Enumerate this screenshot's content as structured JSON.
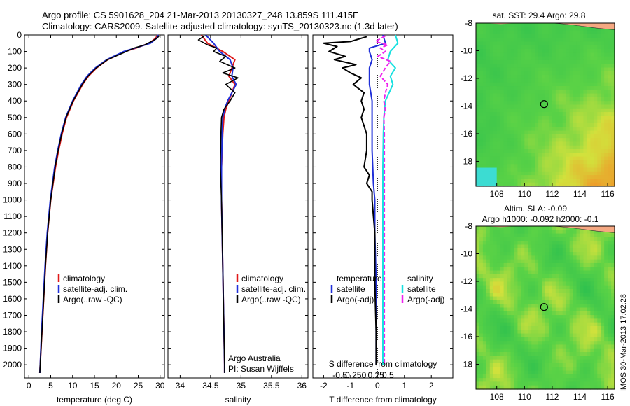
{
  "header": {
    "line1": "Argo profile: CS 5901628_204 21-Mar-2013 20130327_248 13.859S 111.415E",
    "line2": "Climatology: CARS2009. Satellite-adjusted climatology: synTS_20130323.nc (1.3d later)"
  },
  "colors": {
    "climatology": "#e01818",
    "satellite": "#1f2fd8",
    "argo": "#000000",
    "sal_satellite": "#18e0e0",
    "sal_argo": "#ee22ee",
    "land": "#f5a882"
  },
  "chart_data": [
    {
      "id": "temperature",
      "type": "line",
      "xlabel": "temperature (deg C)",
      "ylabel": "",
      "xlim": [
        -1,
        31
      ],
      "ylim": [
        2080,
        0
      ],
      "xticks": [
        "0",
        "5",
        "10",
        "15",
        "20",
        "25",
        "30"
      ],
      "xtick_values": [
        0,
        5,
        10,
        15,
        20,
        25,
        30
      ],
      "yticks": [
        "0",
        "100",
        "200",
        "300",
        "400",
        "500",
        "600",
        "700",
        "800",
        "900",
        "1000",
        "1100",
        "1200",
        "1300",
        "1400",
        "1500",
        "1600",
        "1700",
        "1800",
        "1900",
        "2000"
      ],
      "ytick_values": [
        0,
        100,
        200,
        300,
        400,
        500,
        600,
        700,
        800,
        900,
        1000,
        1100,
        1200,
        1300,
        1400,
        1500,
        1600,
        1700,
        1800,
        1900,
        2000
      ],
      "legend": [
        "climatology",
        "satellite-adj. clim.",
        "Argo(..raw -QC)"
      ],
      "series": [
        {
          "name": "climatology",
          "depth": [
            0,
            20,
            50,
            80,
            100,
            150,
            200,
            250,
            300,
            400,
            500,
            600,
            700,
            800,
            1000,
            1200,
            1400,
            1600,
            1800,
            2000,
            2050
          ],
          "values": [
            29.4,
            29.0,
            27.5,
            24.5,
            22.0,
            18.0,
            15.5,
            13.6,
            12.3,
            10.2,
            8.6,
            7.6,
            6.8,
            6.1,
            5.0,
            4.3,
            3.8,
            3.4,
            3.0,
            2.6,
            2.5
          ]
        },
        {
          "name": "satellite-adj. clim.",
          "depth": [
            0,
            20,
            50,
            80,
            100,
            150,
            200,
            250,
            300,
            400,
            500,
            600,
            700,
            800,
            1000,
            1200,
            1400,
            1600,
            1800,
            2000,
            2050
          ],
          "values": [
            29.6,
            29.2,
            27.8,
            24.2,
            21.7,
            17.8,
            15.2,
            13.3,
            12.0,
            10.0,
            8.4,
            7.4,
            6.6,
            5.9,
            4.9,
            4.2,
            3.7,
            3.3,
            2.9,
            2.6,
            2.5
          ]
        },
        {
          "name": "Argo(..raw -QC)",
          "depth": [
            5,
            20,
            40,
            60,
            80,
            100,
            150,
            200,
            250,
            300,
            400,
            500,
            600,
            700,
            800,
            1000,
            1200,
            1400,
            1600,
            1800,
            2000,
            2050
          ],
          "values": [
            29.8,
            29.3,
            28.0,
            26.5,
            24.0,
            22.3,
            18.0,
            15.4,
            13.5,
            12.2,
            10.1,
            8.5,
            7.5,
            6.7,
            6.0,
            5.0,
            4.3,
            3.8,
            3.4,
            3.0,
            2.6,
            2.5
          ]
        }
      ]
    },
    {
      "id": "salinity",
      "type": "line",
      "xlabel": "salinity",
      "xlim": [
        33.8,
        36.1
      ],
      "ylim": [
        2080,
        0
      ],
      "xticks": [
        "34",
        "34.5",
        "35",
        "35.5",
        "36"
      ],
      "xtick_values": [
        34,
        34.5,
        35,
        35.5,
        36
      ],
      "legend": [
        "climatology",
        "satellite-adj. clim.",
        "Argo(..raw -QC)"
      ],
      "annotations": [
        "Argo Australia",
        "PI: Susan Wijffels"
      ],
      "series": [
        {
          "name": "climatology",
          "depth": [
            0,
            50,
            100,
            150,
            200,
            250,
            300,
            350,
            400,
            450,
            500,
            600,
            800,
            1000,
            1200,
            1400,
            1600,
            1800,
            2000,
            2050
          ],
          "values": [
            34.35,
            34.45,
            34.7,
            34.9,
            34.85,
            34.8,
            34.9,
            34.85,
            34.8,
            34.75,
            34.72,
            34.7,
            34.68,
            34.68,
            34.69,
            34.7,
            34.71,
            34.72,
            34.73,
            34.73
          ]
        },
        {
          "name": "satellite-adj. clim.",
          "depth": [
            0,
            50,
            100,
            150,
            200,
            250,
            300,
            350,
            400,
            450,
            500,
            600,
            800,
            1000,
            1200,
            1400,
            1600,
            1800,
            2000,
            2050
          ],
          "values": [
            34.42,
            34.55,
            34.65,
            34.82,
            34.87,
            34.85,
            34.92,
            34.85,
            34.78,
            34.73,
            34.7,
            34.69,
            34.68,
            34.68,
            34.69,
            34.7,
            34.71,
            34.72,
            34.73,
            34.73
          ]
        },
        {
          "name": "Argo(..raw -QC)",
          "depth": [
            5,
            30,
            60,
            80,
            100,
            130,
            160,
            200,
            230,
            260,
            300,
            350,
            400,
            450,
            500,
            600,
            800,
            1000,
            1200,
            1400,
            1600,
            1800,
            2000,
            2050
          ],
          "values": [
            34.4,
            34.3,
            34.45,
            34.6,
            34.55,
            34.75,
            34.65,
            34.9,
            34.7,
            34.95,
            34.75,
            34.9,
            34.82,
            34.72,
            34.68,
            34.67,
            34.66,
            34.68,
            34.69,
            34.7,
            34.71,
            34.72,
            34.73,
            34.73
          ]
        }
      ]
    },
    {
      "id": "differences",
      "type": "line",
      "xlabel": "T difference from climatology",
      "top_label": "S difference from climatology",
      "xlim": [
        -2.4,
        2.8
      ],
      "ylim": [
        2080,
        0
      ],
      "xticks": [
        "-2",
        "-1",
        "0",
        "1",
        "2"
      ],
      "xtick_values": [
        -2,
        -1,
        0,
        1,
        2
      ],
      "sticks": [
        "-0.5",
        "-0.25",
        "0",
        "0.25",
        "0.5"
      ],
      "stick_values": [
        -0.5,
        -0.25,
        0,
        0.25,
        0.5
      ],
      "legend_temperature": {
        "title": "temperature",
        "items": [
          "satellite",
          "Argo(-adj)"
        ]
      },
      "legend_salinity": {
        "title": "salinity",
        "items": [
          "satellite",
          "Argo(-adj)"
        ]
      },
      "series": [
        {
          "name": "T satellite",
          "depth": [
            0,
            50,
            80,
            100,
            150,
            200,
            250,
            300,
            400,
            500,
            700,
            900,
            1000,
            1200,
            1500,
            1800,
            2000
          ],
          "values": [
            0.2,
            0.3,
            -0.3,
            -0.3,
            -0.2,
            -0.3,
            -0.3,
            -0.3,
            -0.2,
            -0.2,
            -0.2,
            -0.15,
            -0.1,
            -0.1,
            -0.05,
            -0.05,
            -0.05
          ]
        },
        {
          "name": "T Argo(-adj)",
          "depth": [
            10,
            40,
            50,
            70,
            100,
            130,
            150,
            180,
            200,
            230,
            260,
            300,
            350,
            400,
            450,
            500,
            600,
            700,
            800,
            850,
            900,
            950,
            1000,
            1200,
            1500,
            1800,
            2000
          ],
          "values": [
            -0.4,
            -1.0,
            -2.0,
            -1.5,
            -1.8,
            -1.2,
            -1.6,
            -0.8,
            -1.3,
            -1.0,
            -0.6,
            -0.9,
            -0.5,
            -0.6,
            -0.5,
            -0.6,
            -0.4,
            -0.4,
            -0.5,
            -0.3,
            -0.4,
            -0.2,
            -0.2,
            -0.1,
            -0.1,
            -0.05,
            -0.05
          ]
        },
        {
          "name": "S satellite",
          "depth": [
            0,
            50,
            100,
            150,
            200,
            250,
            300,
            400,
            500,
            600,
            800,
            1000,
            1500,
            2000
          ],
          "values": [
            0.25,
            0.3,
            0.15,
            0.1,
            0.25,
            0.15,
            0.2,
            0.05,
            0.02,
            0.01,
            0.0,
            0.0,
            0.0,
            0.0
          ]
        },
        {
          "name": "S Argo(-adj)",
          "depth": [
            5,
            40,
            60,
            80,
            100,
            130,
            160,
            200,
            250,
            300,
            350,
            400,
            450,
            500,
            600,
            800,
            1000,
            1500,
            2000
          ],
          "values": [
            0.05,
            -0.15,
            0.1,
            -0.05,
            0.05,
            -0.1,
            0.15,
            0.05,
            -0.05,
            0.1,
            0.05,
            0.02,
            0.05,
            0.02,
            0.03,
            0.03,
            0.03,
            0.03,
            0.03
          ]
        }
      ]
    },
    {
      "id": "sst_map",
      "type": "heatmap",
      "title": "sat. SST: 29.4  Argo: 29.8",
      "xlim": [
        106.5,
        116.5
      ],
      "ylim": [
        -19.8,
        -8
      ],
      "xticks": [
        "108",
        "110",
        "112",
        "114",
        "116"
      ],
      "xtick_values": [
        108,
        110,
        112,
        114,
        116
      ],
      "yticks": [
        "-8",
        "-10",
        "-12",
        "-14",
        "-16",
        "-18"
      ],
      "ytick_values": [
        -8,
        -10,
        -12,
        -14,
        -16,
        -18
      ],
      "marker": {
        "lon": 111.415,
        "lat": -13.859
      }
    },
    {
      "id": "sla_map",
      "type": "heatmap",
      "title": "Altim. SLA: -0.09",
      "subtitle": "Argo h1000: -0.092 h2000: -0.1",
      "xlim": [
        106.5,
        116.5
      ],
      "ylim": [
        -19.8,
        -8
      ],
      "xticks": [
        "108",
        "110",
        "112",
        "114",
        "116"
      ],
      "xtick_values": [
        108,
        110,
        112,
        114,
        116
      ],
      "yticks": [
        "-8",
        "-10",
        "-12",
        "-14",
        "-16",
        "-18"
      ],
      "ytick_values": [
        -8,
        -10,
        -12,
        -14,
        -16,
        -18
      ],
      "marker": {
        "lon": 111.415,
        "lat": -13.859
      }
    }
  ],
  "footer": {
    "imos_stamp": "IMOS 30-Mar-2013 17:02:28"
  }
}
